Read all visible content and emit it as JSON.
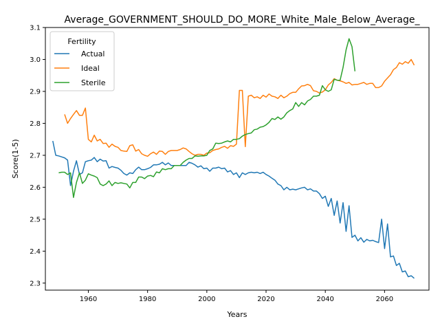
{
  "chart_data": {
    "type": "line",
    "title": "Average_GOVERNMENT_SHOULD_DO_MORE_White_Male_Below_Average_",
    "xlabel": "Years",
    "ylabel": "Score(1-5)",
    "xlim": [
      1945.5,
      2075
    ],
    "ylim": [
      2.278,
      3.1
    ],
    "xticks": [
      1960,
      1980,
      2000,
      2020,
      2040,
      2060
    ],
    "yticks": [
      2.3,
      2.4,
      2.5,
      2.6,
      2.7,
      2.8,
      2.9,
      3.0,
      3.1
    ],
    "grid": false,
    "legend": {
      "title": "Fertility",
      "placement": "top-left"
    },
    "series": [
      {
        "name": "Actual",
        "color": "#1f77b4",
        "x": [
          1948,
          1949,
          1950,
          1951,
          1952,
          1953,
          1954,
          1955,
          1956,
          1957,
          1958,
          1959,
          1960,
          1961,
          1962,
          1963,
          1964,
          1965,
          1966,
          1967,
          1968,
          1969,
          1970,
          1971,
          1972,
          1973,
          1974,
          1975,
          1976,
          1977,
          1978,
          1979,
          1980,
          1981,
          1982,
          1983,
          1984,
          1985,
          1986,
          1987,
          1988,
          1989,
          1990,
          1991,
          1992,
          1993,
          1994,
          1995,
          1996,
          1997,
          1998,
          1999,
          2000,
          2001,
          2002,
          2003,
          2004,
          2005,
          2006,
          2007,
          2008,
          2009,
          2010,
          2011,
          2012,
          2013,
          2014,
          2015,
          2016,
          2017,
          2018,
          2019,
          2020,
          2021,
          2022,
          2023,
          2024,
          2025,
          2026,
          2027,
          2028,
          2029,
          2030,
          2031,
          2032,
          2033,
          2034,
          2035,
          2036,
          2037,
          2038,
          2039,
          2040,
          2041,
          2042,
          2043,
          2044,
          2045,
          2046,
          2047,
          2048,
          2049,
          2050,
          2051,
          2052,
          2053,
          2054,
          2055,
          2056,
          2057,
          2058,
          2059,
          2060,
          2061,
          2062,
          2063,
          2064,
          2065,
          2066,
          2067,
          2068,
          2069,
          2070
        ],
        "values": [
          2.745,
          2.7,
          2.698,
          2.695,
          2.692,
          2.685,
          2.605,
          2.65,
          2.683,
          2.64,
          2.645,
          2.68,
          2.683,
          2.685,
          2.693,
          2.68,
          2.688,
          2.682,
          2.683,
          2.66,
          2.665,
          2.662,
          2.66,
          2.653,
          2.643,
          2.638,
          2.645,
          2.643,
          2.655,
          2.663,
          2.655,
          2.655,
          2.658,
          2.662,
          2.67,
          2.67,
          2.672,
          2.678,
          2.67,
          2.676,
          2.668,
          2.668,
          2.668,
          2.668,
          2.668,
          2.668,
          2.678,
          2.675,
          2.67,
          2.663,
          2.667,
          2.658,
          2.66,
          2.65,
          2.66,
          2.66,
          2.663,
          2.658,
          2.66,
          2.648,
          2.652,
          2.64,
          2.645,
          2.63,
          2.645,
          2.64,
          2.645,
          2.647,
          2.645,
          2.647,
          2.643,
          2.647,
          2.64,
          2.635,
          2.628,
          2.622,
          2.61,
          2.605,
          2.592,
          2.6,
          2.592,
          2.594,
          2.592,
          2.595,
          2.598,
          2.6,
          2.592,
          2.595,
          2.588,
          2.588,
          2.58,
          2.565,
          2.572,
          2.54,
          2.565,
          2.512,
          2.557,
          2.488,
          2.552,
          2.462,
          2.542,
          2.443,
          2.45,
          2.432,
          2.442,
          2.428,
          2.437,
          2.432,
          2.434,
          2.43,
          2.427,
          2.5,
          2.408,
          2.485,
          2.382,
          2.385,
          2.355,
          2.362,
          2.335,
          2.338,
          2.32,
          2.323,
          2.315
        ]
      },
      {
        "name": "Ideal",
        "color": "#ff7f0e",
        "x": [
          1952,
          1953,
          1954,
          1955,
          1956,
          1957,
          1958,
          1959,
          1960,
          1961,
          1962,
          1963,
          1964,
          1965,
          1966,
          1967,
          1968,
          1969,
          1970,
          1971,
          1972,
          1973,
          1974,
          1975,
          1976,
          1977,
          1978,
          1979,
          1980,
          1981,
          1982,
          1983,
          1984,
          1985,
          1986,
          1987,
          1988,
          1989,
          1990,
          1991,
          1992,
          1993,
          1994,
          1995,
          1996,
          1997,
          1998,
          1999,
          2000,
          2001,
          2002,
          2003,
          2004,
          2005,
          2006,
          2007,
          2008,
          2009,
          2010,
          2011,
          2012,
          2013,
          2014,
          2015,
          2016,
          2017,
          2018,
          2019,
          2020,
          2021,
          2022,
          2023,
          2024,
          2025,
          2026,
          2027,
          2028,
          2029,
          2030,
          2031,
          2032,
          2033,
          2034,
          2035,
          2036,
          2037,
          2038,
          2039,
          2040,
          2041,
          2042,
          2043,
          2044,
          2045,
          2046,
          2047,
          2048,
          2049,
          2050,
          2051,
          2052,
          2053,
          2054,
          2055,
          2056,
          2057,
          2058,
          2059,
          2060,
          2061,
          2062,
          2063,
          2064,
          2065,
          2066,
          2067,
          2068,
          2069,
          2070
        ],
        "values": [
          2.828,
          2.8,
          2.815,
          2.828,
          2.84,
          2.825,
          2.825,
          2.848,
          2.75,
          2.742,
          2.763,
          2.745,
          2.75,
          2.737,
          2.738,
          2.725,
          2.735,
          2.728,
          2.725,
          2.715,
          2.713,
          2.712,
          2.73,
          2.733,
          2.713,
          2.718,
          2.705,
          2.7,
          2.697,
          2.705,
          2.71,
          2.703,
          2.713,
          2.712,
          2.703,
          2.712,
          2.715,
          2.715,
          2.715,
          2.718,
          2.723,
          2.72,
          2.712,
          2.705,
          2.7,
          2.703,
          2.703,
          2.7,
          2.707,
          2.708,
          2.715,
          2.718,
          2.72,
          2.725,
          2.728,
          2.722,
          2.73,
          2.728,
          2.735,
          2.903,
          2.903,
          2.727,
          2.885,
          2.888,
          2.88,
          2.883,
          2.878,
          2.888,
          2.882,
          2.892,
          2.885,
          2.883,
          2.878,
          2.888,
          2.88,
          2.885,
          2.893,
          2.897,
          2.897,
          2.908,
          2.917,
          2.918,
          2.922,
          2.918,
          2.902,
          2.9,
          2.895,
          2.898,
          2.905,
          2.92,
          2.928,
          2.94,
          2.935,
          2.933,
          2.93,
          2.925,
          2.928,
          2.92,
          2.922,
          2.922,
          2.925,
          2.928,
          2.922,
          2.925,
          2.925,
          2.912,
          2.912,
          2.917,
          2.932,
          2.942,
          2.952,
          2.968,
          2.975,
          2.99,
          2.985,
          2.993,
          2.988,
          3.0,
          2.982
        ]
      },
      {
        "name": "Sterile",
        "color": "#2ca02c",
        "x": [
          1950,
          1951,
          1952,
          1953,
          1954,
          1955,
          1956,
          1957,
          1958,
          1959,
          1960,
          1961,
          1962,
          1963,
          1964,
          1965,
          1966,
          1967,
          1968,
          1969,
          1970,
          1971,
          1972,
          1973,
          1974,
          1975,
          1976,
          1977,
          1978,
          1979,
          1980,
          1981,
          1982,
          1983,
          1984,
          1985,
          1986,
          1987,
          1988,
          1989,
          1990,
          1991,
          1992,
          1993,
          1994,
          1995,
          1996,
          1997,
          1998,
          1999,
          2000,
          2001,
          2002,
          2003,
          2004,
          2005,
          2006,
          2007,
          2008,
          2009,
          2010,
          2011,
          2012,
          2013,
          2014,
          2015,
          2016,
          2017,
          2018,
          2019,
          2020,
          2021,
          2022,
          2023,
          2024,
          2025,
          2026,
          2027,
          2028,
          2029,
          2030,
          2031,
          2032,
          2033,
          2034,
          2035,
          2036,
          2037,
          2038,
          2039,
          2040,
          2041,
          2042,
          2043,
          2044,
          2045,
          2046,
          2047,
          2048,
          2049,
          2050
        ],
        "values": [
          2.645,
          2.647,
          2.647,
          2.64,
          2.645,
          2.568,
          2.615,
          2.645,
          2.612,
          2.622,
          2.642,
          2.638,
          2.635,
          2.63,
          2.61,
          2.605,
          2.61,
          2.62,
          2.605,
          2.615,
          2.612,
          2.614,
          2.612,
          2.61,
          2.598,
          2.615,
          2.615,
          2.632,
          2.632,
          2.627,
          2.635,
          2.637,
          2.633,
          2.648,
          2.645,
          2.658,
          2.655,
          2.658,
          2.658,
          2.668,
          2.668,
          2.668,
          2.678,
          2.685,
          2.69,
          2.69,
          2.698,
          2.697,
          2.698,
          2.698,
          2.7,
          2.715,
          2.72,
          2.738,
          2.737,
          2.738,
          2.742,
          2.745,
          2.742,
          2.75,
          2.75,
          2.752,
          2.76,
          2.765,
          2.768,
          2.77,
          2.78,
          2.782,
          2.788,
          2.79,
          2.795,
          2.803,
          2.815,
          2.812,
          2.82,
          2.813,
          2.82,
          2.833,
          2.84,
          2.845,
          2.865,
          2.853,
          2.865,
          2.858,
          2.87,
          2.875,
          2.885,
          2.885,
          2.888,
          2.918,
          2.905,
          2.9,
          2.905,
          2.938,
          2.935,
          2.935,
          2.975,
          3.03,
          3.065,
          3.04,
          2.963
        ]
      }
    ]
  }
}
